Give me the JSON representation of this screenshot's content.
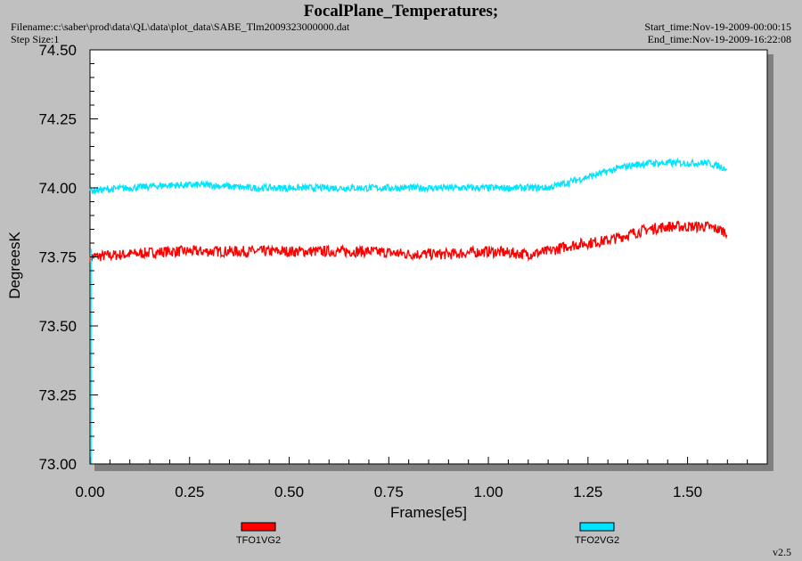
{
  "header": {
    "title": "FocalPlane_Temperatures;",
    "filename": "Filename:c:\\saber\\prod\\data\\QL\\data\\plot_data\\SABE_Tlm2009323000000.dat",
    "step_size": "Step Size:1",
    "start_time": "Start_time:Nov-19-2009-00:00:15",
    "end_time": "End_time:Nov-19-2009-16:22:08"
  },
  "footer": {
    "version": "v2.5"
  },
  "chart_data": {
    "type": "line",
    "title": "FocalPlane_Temperatures;",
    "xlabel": "Frames[e5]",
    "ylabel": "DegreesK",
    "xlim": [
      0,
      1.7
    ],
    "ylim": [
      73.0,
      74.5
    ],
    "xticks": [
      "0.00",
      "0.25",
      "0.50",
      "0.75",
      "1.00",
      "1.25",
      "1.50"
    ],
    "yticks": [
      "73.00",
      "73.25",
      "73.50",
      "73.75",
      "74.00",
      "74.25",
      "74.50"
    ],
    "grid": false,
    "legend_position": "bottom",
    "background": "#ffffff",
    "series": [
      {
        "name": "TFO1VG2",
        "color": "#ff0000",
        "noise": 0.04,
        "x": [
          0.0,
          0.1,
          0.2,
          0.3,
          0.4,
          0.5,
          0.6,
          0.7,
          0.8,
          0.9,
          1.0,
          1.1,
          1.15,
          1.2,
          1.25,
          1.3,
          1.35,
          1.4,
          1.45,
          1.5,
          1.55,
          1.6
        ],
        "y": [
          73.75,
          73.76,
          73.77,
          73.77,
          73.77,
          73.77,
          73.77,
          73.77,
          73.76,
          73.76,
          73.77,
          73.76,
          73.77,
          73.79,
          73.8,
          73.81,
          73.83,
          73.85,
          73.86,
          73.86,
          73.86,
          73.84
        ]
      },
      {
        "name": "TFO2VG2",
        "color": "#00e4ff",
        "noise": 0.025,
        "x": [
          0.0,
          0.1,
          0.2,
          0.3,
          0.4,
          0.5,
          0.6,
          0.7,
          0.8,
          0.9,
          1.0,
          1.1,
          1.15,
          1.2,
          1.25,
          1.3,
          1.35,
          1.4,
          1.45,
          1.5,
          1.55,
          1.6
        ],
        "y": [
          73.99,
          74.0,
          74.01,
          74.01,
          74.0,
          74.0,
          74.0,
          74.0,
          74.0,
          74.0,
          74.0,
          74.0,
          74.0,
          74.02,
          74.04,
          74.06,
          74.08,
          74.09,
          74.09,
          74.09,
          74.09,
          74.07
        ]
      }
    ]
  }
}
